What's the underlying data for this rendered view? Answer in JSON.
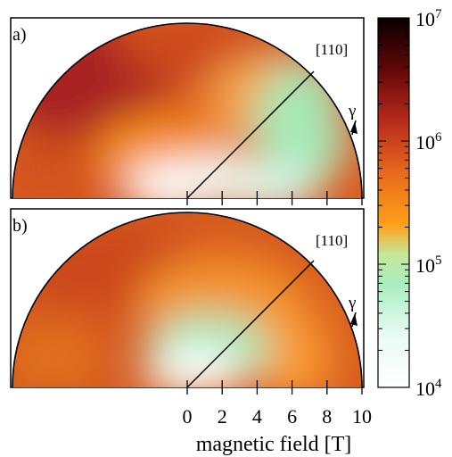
{
  "chart_data": {
    "type": "heatmap",
    "subtype": "polar-semicircle",
    "xlabel": "magnetic field [T]",
    "x_ticks": [
      0,
      2,
      4,
      6,
      8,
      10
    ],
    "xlim": [
      0,
      10
    ],
    "direction_label": "[110]",
    "angle_label": "γ",
    "colorbar": {
      "scale": "log",
      "range": [
        10000,
        10000000
      ],
      "ticks": [
        {
          "value": 10000,
          "base": "10",
          "exp": "4"
        },
        {
          "value": 100000,
          "base": "10",
          "exp": "5"
        },
        {
          "value": 1000000,
          "base": "10",
          "exp": "6"
        },
        {
          "value": 10000000,
          "base": "10",
          "exp": "7"
        }
      ]
    },
    "panels": [
      {
        "label": "a)",
        "direction_angle_deg": 45
      },
      {
        "label": "b)",
        "direction_angle_deg": 45
      }
    ]
  }
}
